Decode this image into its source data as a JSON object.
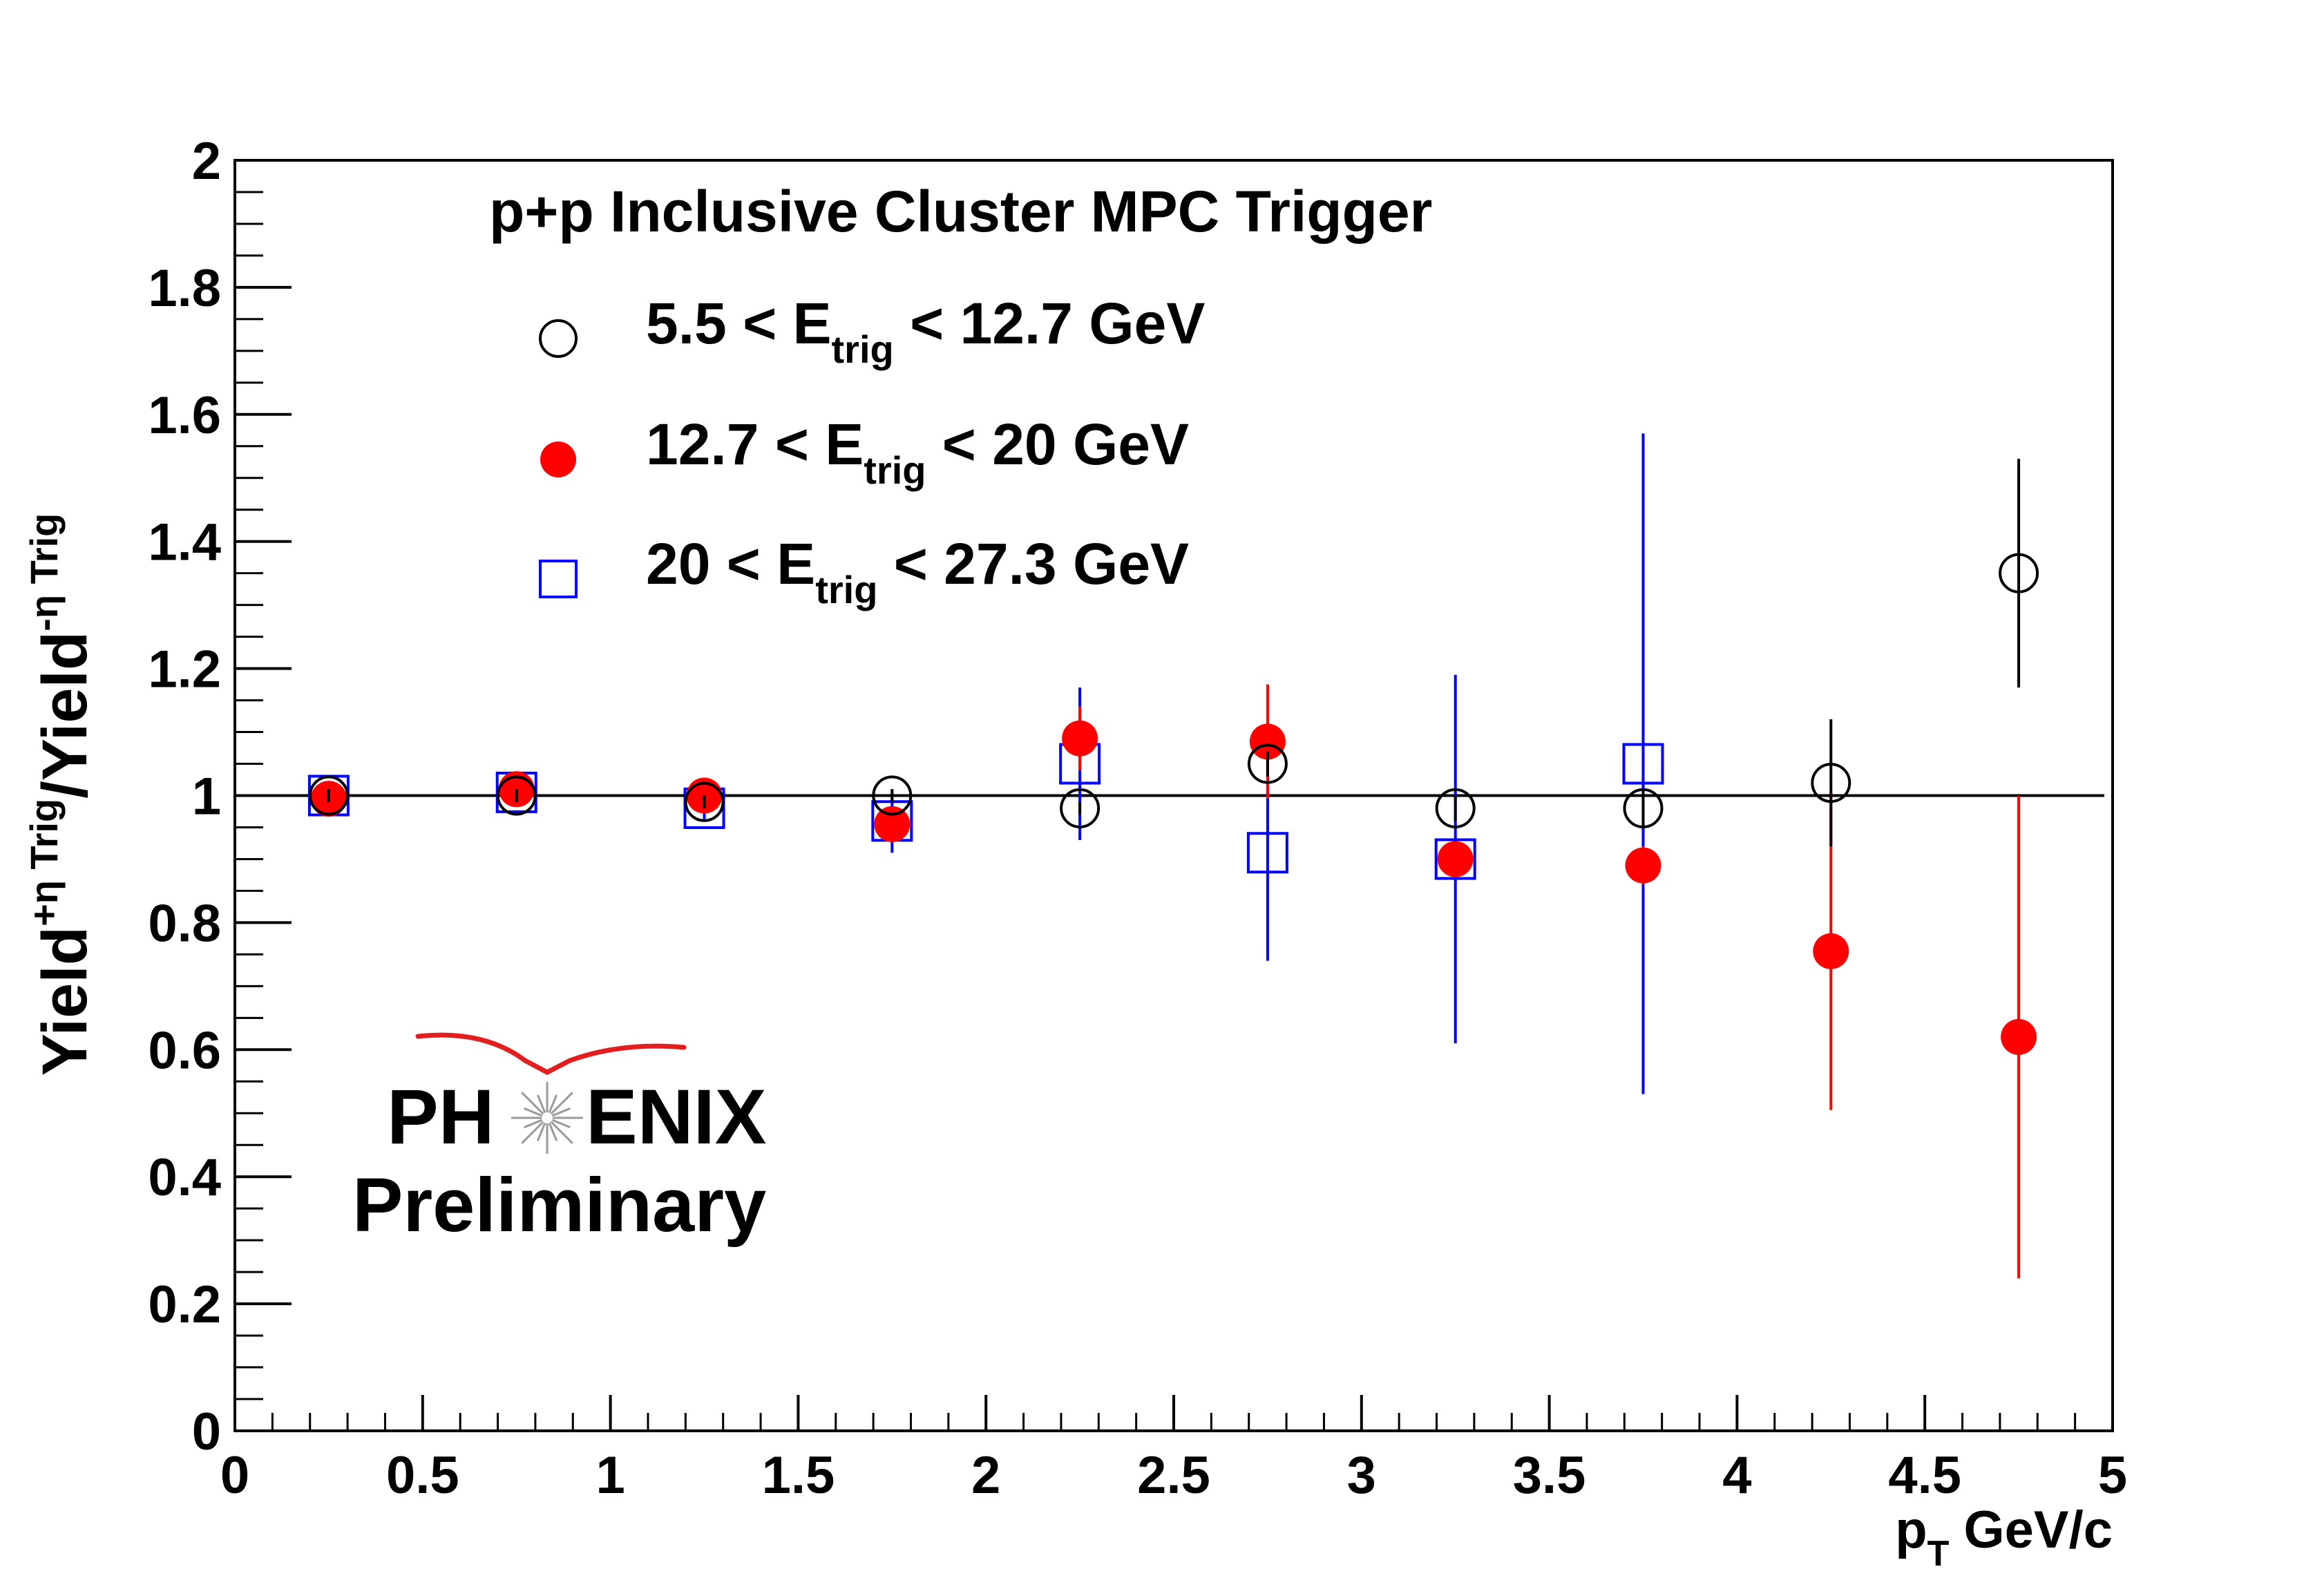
{
  "chart_data": {
    "type": "scatter",
    "title": "p+p Inclusive Cluster MPC Trigger",
    "xlabel": {
      "main": "p",
      "sub": "T",
      "rest": " GeV/c"
    },
    "ylabel": {
      "a": "Yield",
      "sup1": "+η Trig",
      "b": "/Yield",
      "sup2": "-η Trig"
    },
    "xlim": [
      0,
      5
    ],
    "ylim": [
      0,
      2
    ],
    "x_ticks": [
      0,
      0.5,
      1,
      1.5,
      2,
      2.5,
      3,
      3.5,
      4,
      4.5,
      5
    ],
    "x_tick_labels": [
      "0",
      "0.5",
      "1",
      "1.5",
      "2",
      "2.5",
      "3",
      "3.5",
      "4",
      "4.5",
      "5"
    ],
    "y_ticks": [
      0,
      0.2,
      0.4,
      0.6,
      0.8,
      1,
      1.2,
      1.4,
      1.6,
      1.8,
      2
    ],
    "y_tick_labels": [
      "0",
      "0.2",
      "0.4",
      "0.6",
      "0.8",
      "1",
      "1.2",
      "1.4",
      "1.6",
      "1.8",
      "2"
    ],
    "reference_line": 1,
    "grid": false,
    "legend_position": "top-left",
    "series": [
      {
        "name": {
          "pre": "5.5  < E",
          "sub": "trig",
          "post": " < 12.7 GeV"
        },
        "marker": "open-circle",
        "color": "#000000",
        "points": [
          {
            "x": 0.25,
            "y": 1.0,
            "err": 0.01
          },
          {
            "x": 0.75,
            "y": 1.0,
            "err": 0.01
          },
          {
            "x": 1.25,
            "y": 0.99,
            "err": 0.01
          },
          {
            "x": 1.75,
            "y": 1.0,
            "err": 0.01
          },
          {
            "x": 2.25,
            "y": 0.98,
            "err": 0.01
          },
          {
            "x": 2.75,
            "y": 1.05,
            "err": 0.02
          },
          {
            "x": 3.25,
            "y": 0.98,
            "err": 0.02
          },
          {
            "x": 3.75,
            "y": 0.98,
            "err": 0.03
          },
          {
            "x": 4.25,
            "y": 1.02,
            "err": 0.1
          },
          {
            "x": 4.75,
            "y": 1.35,
            "err": 0.18
          }
        ]
      },
      {
        "name": {
          "pre": "12.7 < E",
          "sub": "trig",
          "post": " < 20 GeV"
        },
        "marker": "filled-circle",
        "color": "#ff0000",
        "points": [
          {
            "x": 0.25,
            "y": 0.995,
            "err": 0.01
          },
          {
            "x": 0.75,
            "y": 1.01,
            "err": 0.01
          },
          {
            "x": 1.25,
            "y": 1.0,
            "err": 0.01
          },
          {
            "x": 1.75,
            "y": 0.955,
            "err": 0.02
          },
          {
            "x": 2.25,
            "y": 1.09,
            "err": 0.05
          },
          {
            "x": 2.75,
            "y": 1.085,
            "err": 0.09
          },
          {
            "x": 3.25,
            "y": 0.9,
            "err": 0.02
          },
          {
            "x": 3.75,
            "y": 0.89,
            "err": 0.03
          },
          {
            "x": 4.25,
            "y": 0.755,
            "err": 0.25
          },
          {
            "x": 4.75,
            "y": 0.62,
            "err": 0.38
          }
        ]
      },
      {
        "name": {
          "pre": "20 < E",
          "sub": "trig",
          "post": " < 27.3 GeV"
        },
        "marker": "open-square",
        "color": "#0000ff",
        "points": [
          {
            "x": 0.25,
            "y": 1.0,
            "err": 0.01
          },
          {
            "x": 0.75,
            "y": 1.005,
            "err": 0.02
          },
          {
            "x": 1.25,
            "y": 0.98,
            "err": 0.02
          },
          {
            "x": 1.75,
            "y": 0.96,
            "err": 0.05
          },
          {
            "x": 2.25,
            "y": 1.05,
            "err": 0.12
          },
          {
            "x": 2.75,
            "y": 0.91,
            "err": 0.17
          },
          {
            "x": 3.25,
            "y": 0.9,
            "err": 0.29
          },
          {
            "x": 3.75,
            "y": 1.05,
            "err": 0.52
          }
        ]
      }
    ]
  },
  "logo": {
    "text_left": "PH",
    "text_right": "ENIX",
    "subtitle": "Preliminary",
    "arc_color": "#e31e1e",
    "subtitle_color": "#999999"
  }
}
